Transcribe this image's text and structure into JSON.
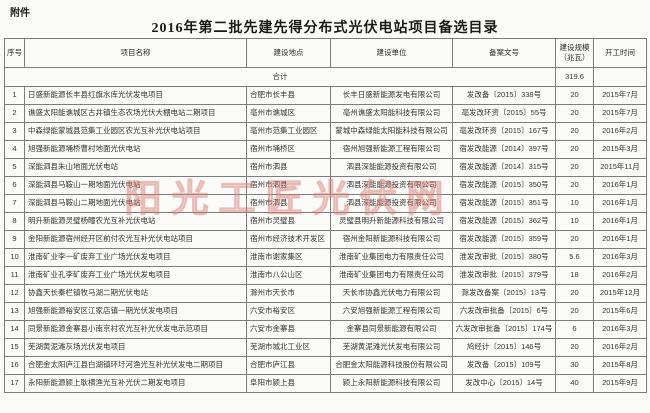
{
  "page": {
    "attachment_label": "附件",
    "title": "2016年第二批先建先得分布式光伏电站项目备选目录"
  },
  "watermark": {
    "text": "阳光工匠光伏网",
    "color": "#d6786e"
  },
  "table": {
    "columns": [
      "序号",
      "项目名称",
      "建设地点",
      "建设单位",
      "备案文号",
      "建设规模（兆瓦）",
      "开工时间"
    ],
    "total_row": {
      "label": "合计",
      "capacity": "319.6",
      "start": ""
    },
    "rows": [
      {
        "id": "1",
        "name": "日盛新能源长丰县红旗水库光伏发电项目",
        "location": "合肥市长丰县",
        "builder": "长丰日盛新能源发电有限公司",
        "doc": "发改备〔2015〕338号",
        "capacity": "20",
        "start": "2015年7月"
      },
      {
        "id": "2",
        "name": "谯盛太阳能谯城区古井镇生态农场光伏大棚电站二期项目",
        "location": "亳州市谯城区",
        "builder": "亳州谯盛太阳能科技有限公司",
        "doc": "亳发改环资〔2015〕55号",
        "capacity": "20",
        "start": "2015年7月"
      },
      {
        "id": "3",
        "name": "中森绿能蒙城县范集工业园区农光互补光伏电站项目",
        "location": "亳州市范集工业园区",
        "builder": "蒙城中森绿能太阳能科技有限公司",
        "doc": "亳发改环资〔2015〕167号",
        "capacity": "20",
        "start": "2016年2月"
      },
      {
        "id": "4",
        "name": "旭强新能源埇桥曹村地面光伏电站",
        "location": "宿州市埇桥区",
        "builder": "宿州旭强新能源工程有限公司",
        "doc": "宿发改能源〔2014〕397号",
        "capacity": "20",
        "start": "2015年3月"
      },
      {
        "id": "5",
        "name": "深能泗县朱山地面光伏电站",
        "location": "宿州市泗县",
        "builder": "泗县深能能源投资有限公司",
        "doc": "宿发改能源〔2014〕315号",
        "capacity": "20",
        "start": "2015年11月"
      },
      {
        "id": "6",
        "name": "深能泗县马鞍山一期地面光伏电站",
        "location": "宿州市泗县",
        "builder": "泗县深能能源投资有限公司",
        "doc": "宿发改能源〔2015〕350号",
        "capacity": "20",
        "start": "2016年1月"
      },
      {
        "id": "7",
        "name": "深能泗县马鞍山二期地面光伏电站",
        "location": "宿州市泗县",
        "builder": "泗县深能能源投资有限公司",
        "doc": "宿发改能源〔2015〕351号",
        "capacity": "10",
        "start": "2016年1月"
      },
      {
        "id": "8",
        "name": "明升新能源灵璧杨疃农光互补光伏电站",
        "location": "宿州市灵璧县",
        "builder": "灵璧县明升新能源科技有限公司",
        "doc": "宿发改能源〔2015〕362号",
        "capacity": "10",
        "start": "2016年1月"
      },
      {
        "id": "9",
        "name": "金阳新能源宿州经开区前付农光互补光伏电站项目",
        "location": "宿州市经济技术开发区",
        "builder": "宿州金阳新能源科技有限公司",
        "doc": "宿发改能源〔2015〕359号",
        "capacity": "20",
        "start": "2016年1月"
      },
      {
        "id": "10",
        "name": "淮南矿业李一矿废弃工业广场光伏发电项目",
        "location": "淮南市谢家集区",
        "builder": "淮南矿业集团电力有限责任公司",
        "doc": "淮发改审批〔2015〕380号",
        "capacity": "5.6",
        "start": "2016年3月"
      },
      {
        "id": "11",
        "name": "淮南矿业孔李矿废弃工业广场光伏发电项目",
        "location": "淮南市八公山区",
        "builder": "淮南矿业集团电力有限责任公司",
        "doc": "淮发改审批〔2015〕379号",
        "capacity": "18",
        "start": "2016年2月"
      },
      {
        "id": "12",
        "name": "协鑫天长秦栏镇牧马湖二期光伏电站",
        "location": "滁州市天长市",
        "builder": "天长市协鑫光伏电力有限公司",
        "doc": "滁发改备案〔2015〕13号",
        "capacity": "20",
        "start": "2015年12月"
      },
      {
        "id": "13",
        "name": "旭强新能源裕安区江家店镇一期光伏发电项目",
        "location": "六安市裕安区",
        "builder": "六安旭强新能源工程有限公司",
        "doc": "六发改审批备〔2015〕6号",
        "capacity": "20",
        "start": "2015年6月"
      },
      {
        "id": "14",
        "name": "同景新能源金寨县小南京村农光互补光伏发电示范项目",
        "location": "六安市金寨县",
        "builder": "金寨县同景新能源有限公司",
        "doc": "六发改审批备〔2015〕174号",
        "capacity": "6",
        "start": "2016年3月"
      },
      {
        "id": "15",
        "name": "芜湖黄泥滩灰场光伏发电项目",
        "location": "芜湖市城北工业区",
        "builder": "芜湖黄泥滩光伏发电有限公司",
        "doc": "鸠经计〔2015〕146号",
        "capacity": "20",
        "start": "2016年2月"
      },
      {
        "id": "16",
        "name": "合肥金太阳庐江县白湖镇环圩河渔光互补光伏发电二期项目",
        "location": "合肥市庐江县",
        "builder": "合肥金太阳能源科技股份有限公司",
        "doc": "发改备〔2015〕109号",
        "capacity": "30",
        "start": "2015年8月"
      },
      {
        "id": "17",
        "name": "永阳新能源颍上耿横渔光互补光伏二期发电项目",
        "location": "阜阳市颍上县",
        "builder": "颍上永阳新能源科技有限公司",
        "doc": "发改中心〔2015〕14号",
        "capacity": "40",
        "start": "2015年9月"
      }
    ]
  }
}
